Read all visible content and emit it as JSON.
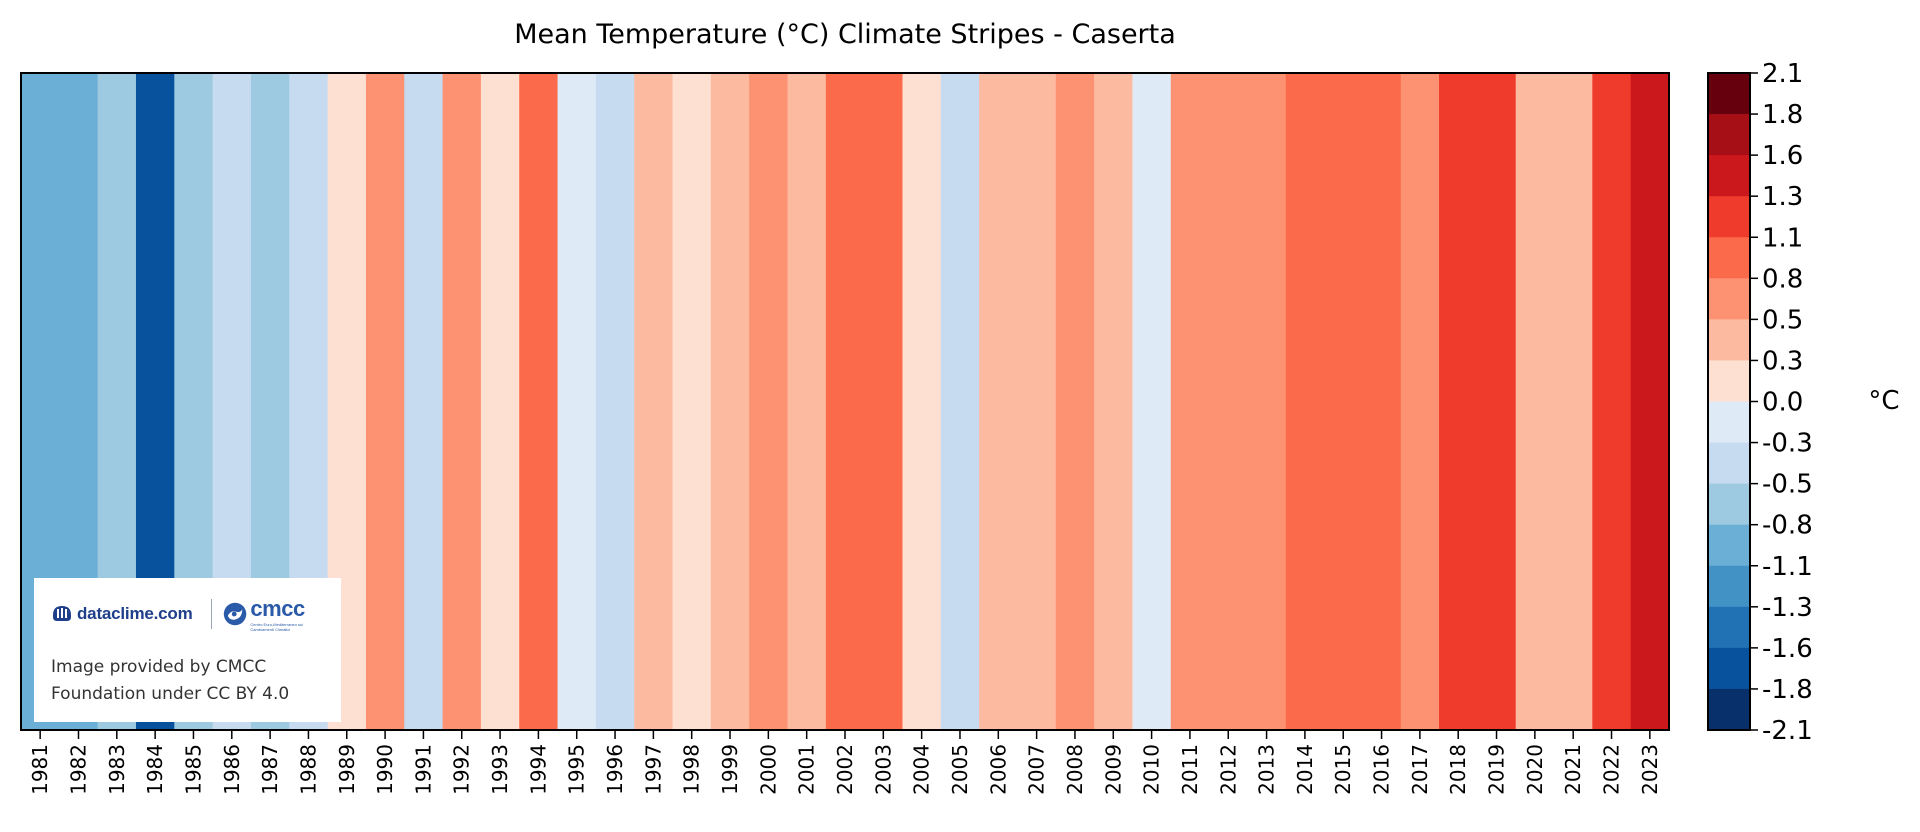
{
  "chart_data": {
    "type": "heatmap",
    "title": "Mean Temperature (°C) Climate Stripes - Caserta",
    "years": [
      "1981",
      "1982",
      "1983",
      "1984",
      "1985",
      "1986",
      "1987",
      "1988",
      "1989",
      "1990",
      "1991",
      "1992",
      "1993",
      "1994",
      "1995",
      "1996",
      "1997",
      "1998",
      "1999",
      "2000",
      "2001",
      "2002",
      "2003",
      "2004",
      "2005",
      "2006",
      "2007",
      "2008",
      "2009",
      "2010",
      "2011",
      "2012",
      "2013",
      "2014",
      "2015",
      "2016",
      "2017",
      "2018",
      "2019",
      "2020",
      "2021",
      "2022",
      "2023"
    ],
    "anomalies": [
      -0.9,
      -0.9,
      -0.6,
      -1.7,
      -0.6,
      -0.4,
      -0.6,
      -0.4,
      0.1,
      0.7,
      -0.4,
      0.7,
      0.1,
      0.9,
      -0.1,
      -0.4,
      0.4,
      0.1,
      0.4,
      0.7,
      0.4,
      0.9,
      0.9,
      0.1,
      -0.4,
      0.4,
      0.4,
      0.7,
      0.4,
      -0.1,
      0.7,
      0.7,
      0.7,
      0.9,
      0.9,
      0.9,
      0.7,
      1.2,
      1.2,
      0.4,
      0.4,
      1.2,
      1.4
    ],
    "colorbar": {
      "label": "°C",
      "min": -2.1,
      "max": 2.1,
      "tick_labels": [
        "2.1",
        "1.8",
        "1.6",
        "1.3",
        "1.1",
        "0.8",
        "0.5",
        "0.3",
        "0.0",
        "-0.3",
        "-0.5",
        "-0.8",
        "-1.1",
        "-1.3",
        "-1.6",
        "-1.8",
        "-2.1"
      ],
      "colors_top_to_bottom": [
        "#67000d",
        "#a50f15",
        "#cb181d",
        "#ef3b2c",
        "#fb6a4a",
        "#fc9272",
        "#fcbba1",
        "#fee0d2",
        "#deebf7",
        "#c6dbef",
        "#9ecae1",
        "#6baed6",
        "#4292c6",
        "#2171b5",
        "#08519c",
        "#08306b"
      ]
    }
  },
  "attribution": {
    "dataclime_logo": "dataclime.com",
    "cmcc_logo": "cmcc",
    "cmcc_logo_subtitle": "Centro Euro-Mediterraneo sui Cambiamenti Climatici",
    "line1": "Image provided by CMCC",
    "line2": "Foundation under CC BY 4.0"
  }
}
